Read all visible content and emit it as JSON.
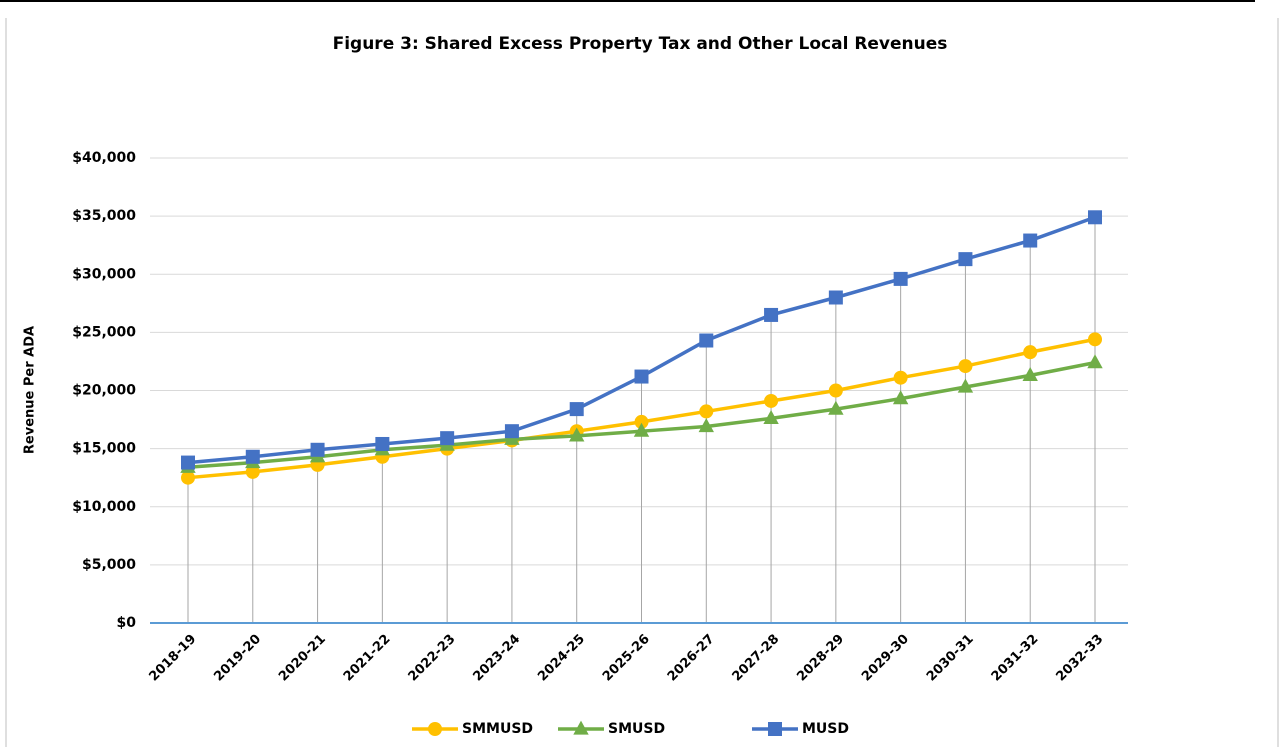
{
  "chart_data": {
    "type": "line",
    "title": "Figure 3: Shared Excess Property Tax and Other Local Revenues",
    "y_label": "Revenue Per ADA",
    "categories": [
      "2018-19",
      "2019-20",
      "2020-21",
      "2021-22",
      "2022-23",
      "2023-24",
      "2024-25",
      "2025-26",
      "2026-27",
      "2027-28",
      "2028-29",
      "2029-30",
      "2030-31",
      "2031-32",
      "2032-33"
    ],
    "series": [
      {
        "name": "SMMUSD",
        "color": "#ffc000",
        "marker": "circle",
        "values": [
          12500,
          13000,
          13600,
          14300,
          15000,
          15700,
          16500,
          17300,
          18200,
          19100,
          20000,
          21100,
          22100,
          23300,
          24400
        ]
      },
      {
        "name": "SMUSD",
        "color": "#70ad47",
        "marker": "triangle",
        "values": [
          13400,
          13800,
          14300,
          14900,
          15300,
          15800,
          16100,
          16500,
          16900,
          17600,
          18400,
          19300,
          20300,
          21300,
          22400
        ]
      },
      {
        "name": "MUSD",
        "color": "#4472c4",
        "marker": "square",
        "values": [
          13800,
          14300,
          14900,
          15400,
          15900,
          16500,
          18400,
          21200,
          24300,
          26500,
          28000,
          29600,
          31300,
          32900,
          34900
        ]
      }
    ],
    "ylim": [
      0,
      40000
    ],
    "yticks": [
      {
        "value": 0,
        "label": "$0"
      },
      {
        "value": 5000,
        "label": "$5,000"
      },
      {
        "value": 10000,
        "label": "$10,000"
      },
      {
        "value": 15000,
        "label": "$15,000"
      },
      {
        "value": 20000,
        "label": "$20,000"
      },
      {
        "value": 25000,
        "label": "$25,000"
      },
      {
        "value": 30000,
        "label": "$30,000"
      },
      {
        "value": 35000,
        "label": "$35,000"
      },
      {
        "value": 40000,
        "label": "$40,000"
      }
    ],
    "grid": true,
    "legend": "bottom"
  }
}
